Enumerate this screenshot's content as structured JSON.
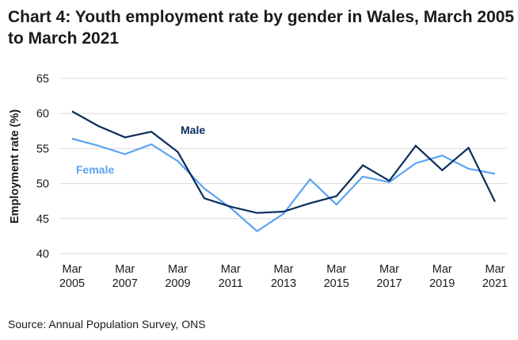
{
  "chart_data": {
    "type": "line",
    "title": "Chart 4: Youth employment rate by gender in Wales, March 2005 to March 2021",
    "xlabel": "",
    "ylabel": "Employment rate (%)",
    "ylim": [
      40,
      65
    ],
    "yticks": [
      "40",
      "45",
      "50",
      "55",
      "60",
      "65"
    ],
    "grid": true,
    "x": [
      2005,
      2006,
      2007,
      2008,
      2009,
      2010,
      2011,
      2012,
      2013,
      2014,
      2015,
      2016,
      2017,
      2018,
      2019,
      2020,
      2021
    ],
    "xticks": [
      {
        "year": 2005,
        "line1": "Mar",
        "line2": "2005"
      },
      {
        "year": 2007,
        "line1": "Mar",
        "line2": "2007"
      },
      {
        "year": 2009,
        "line1": "Mar",
        "line2": "2009"
      },
      {
        "year": 2011,
        "line1": "Mar",
        "line2": "2011"
      },
      {
        "year": 2013,
        "line1": "Mar",
        "line2": "2013"
      },
      {
        "year": 2015,
        "line1": "Mar",
        "line2": "2015"
      },
      {
        "year": 2017,
        "line1": "Mar",
        "line2": "2017"
      },
      {
        "year": 2019,
        "line1": "Mar",
        "line2": "2019"
      },
      {
        "year": 2021,
        "line1": "Mar",
        "line2": "2021"
      }
    ],
    "series": [
      {
        "name": "Male",
        "color": "#0b2d5e",
        "values": [
          60.3,
          58.2,
          56.6,
          57.4,
          54.5,
          47.9,
          46.7,
          45.8,
          46.0,
          47.2,
          48.2,
          52.6,
          50.4,
          55.4,
          51.9,
          55.1,
          47.4
        ]
      },
      {
        "name": "Female",
        "color": "#5ba3f0",
        "values": [
          56.4,
          55.4,
          54.2,
          55.6,
          53.2,
          49.3,
          46.5,
          43.2,
          45.7,
          50.6,
          47.0,
          51.0,
          50.2,
          52.9,
          54.0,
          52.1,
          51.4
        ]
      }
    ],
    "legend": "inline-labels"
  },
  "source": "Source: Annual Population Survey, ONS"
}
